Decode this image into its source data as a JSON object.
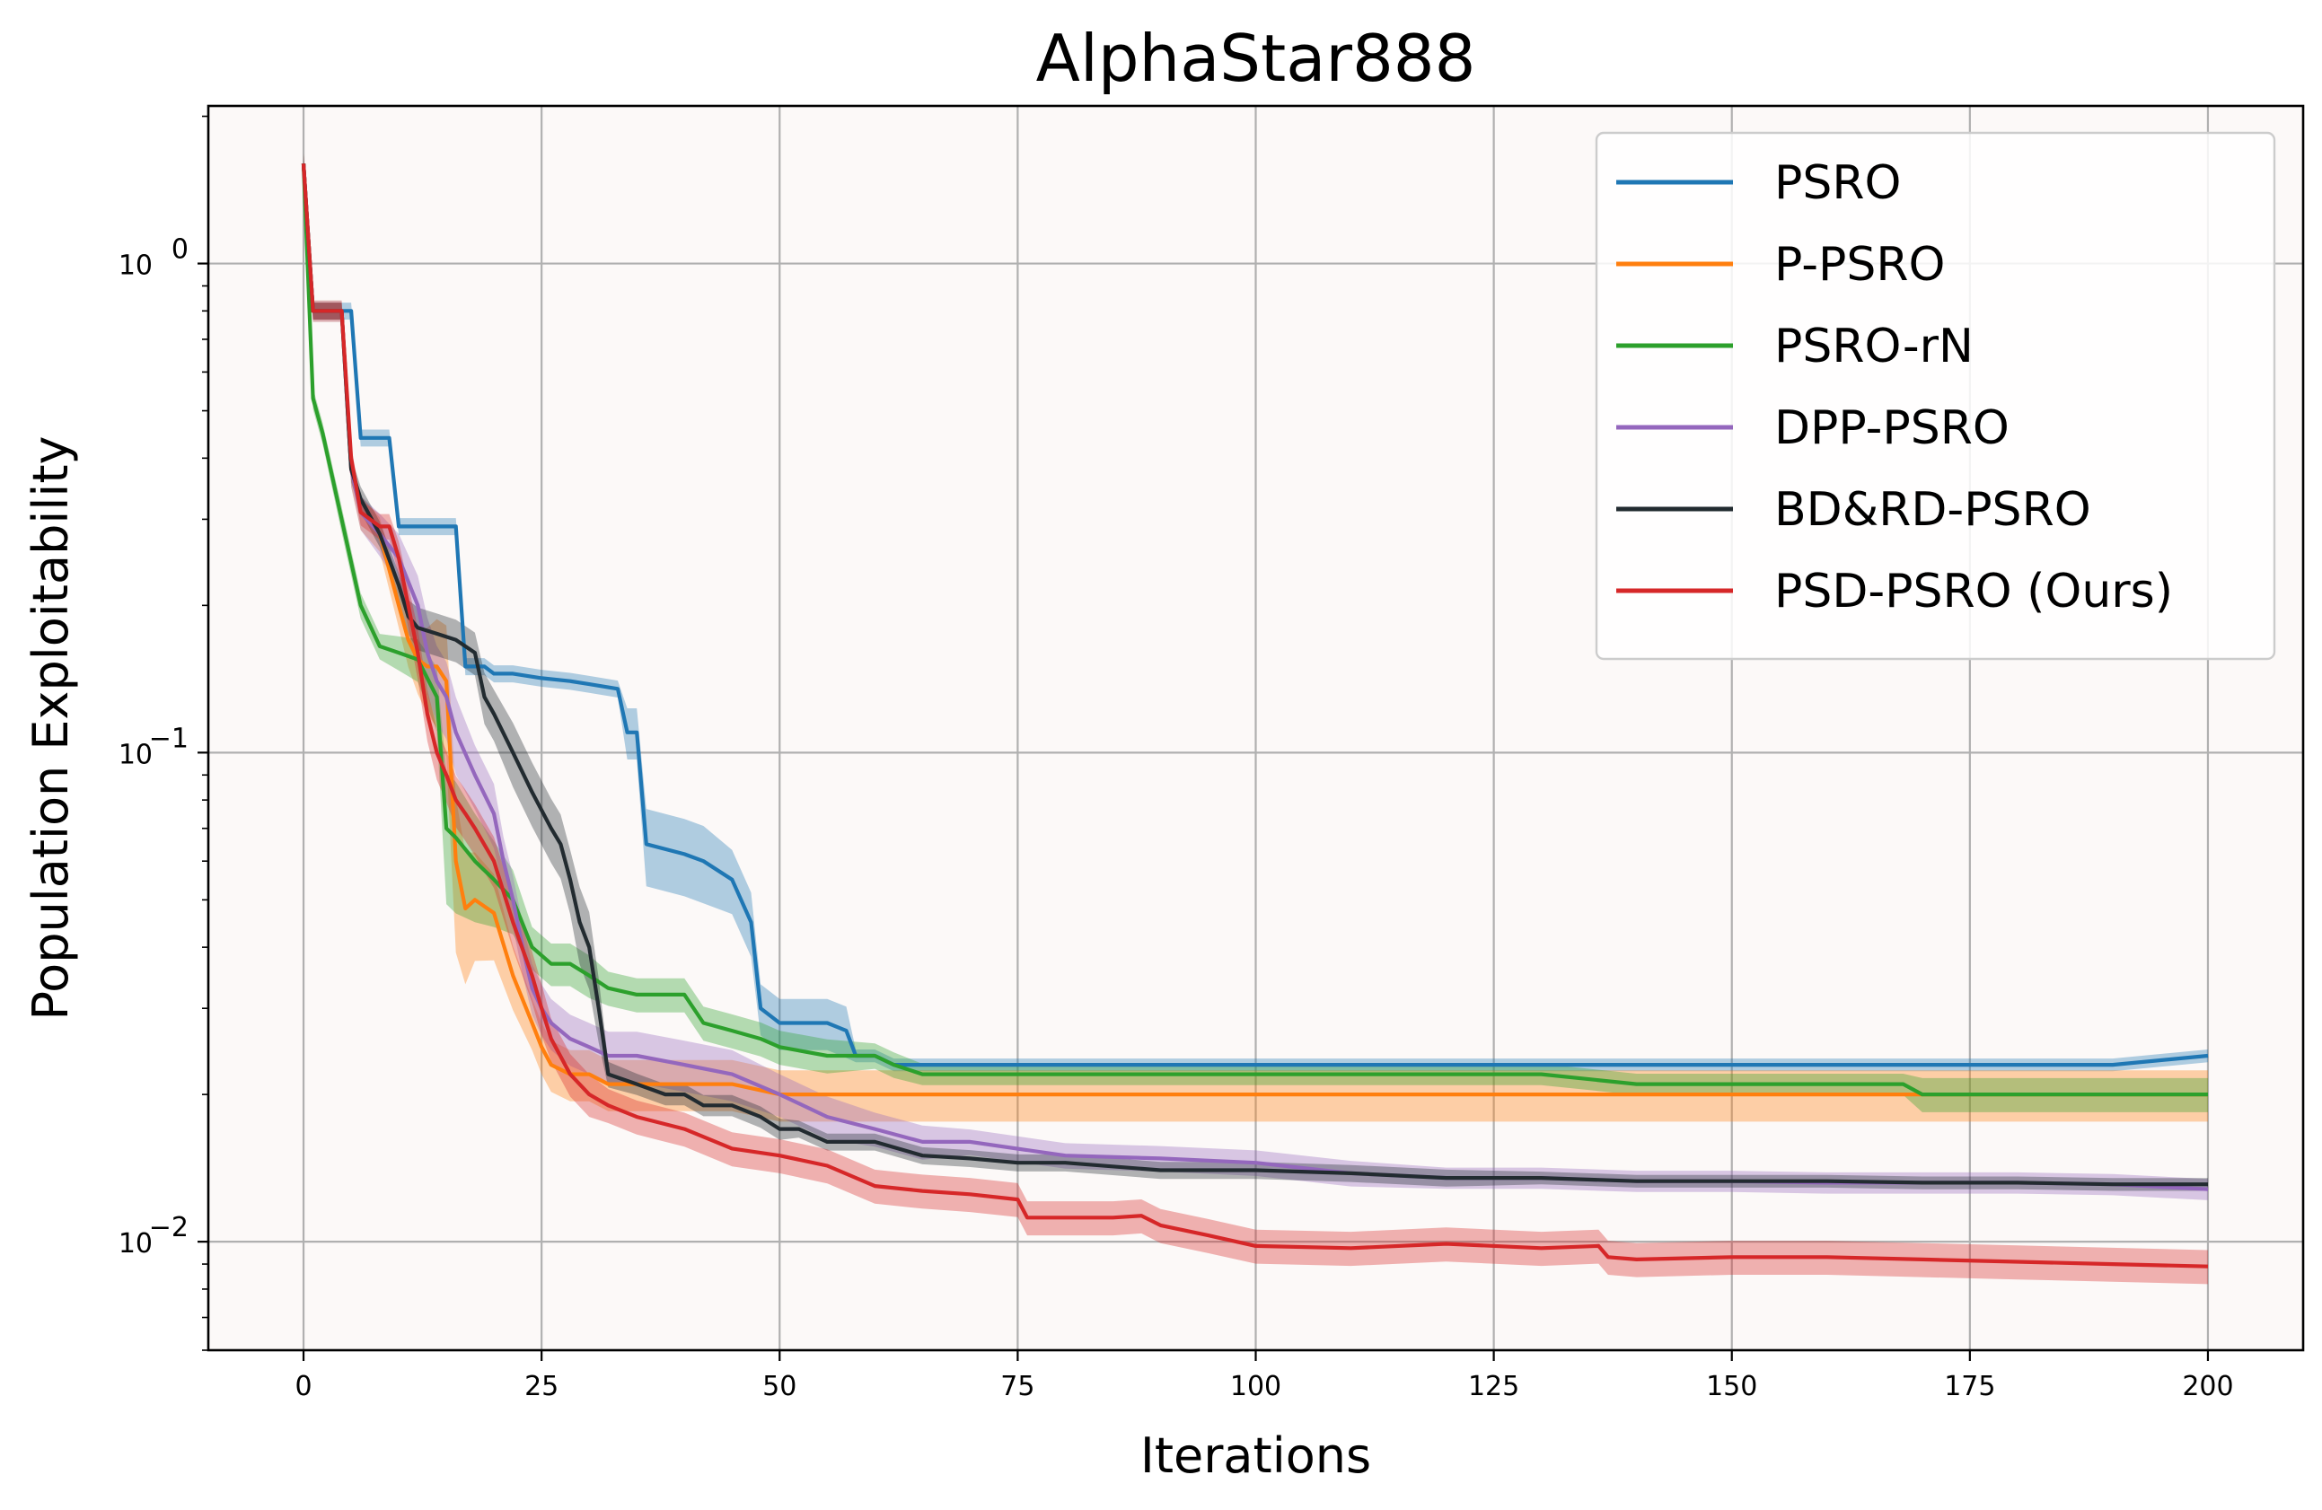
{
  "chart_data": {
    "type": "line",
    "title": "AlphaStar888",
    "xlabel": "Iterations",
    "ylabel": "Population Exploitability",
    "xlim": [
      -10,
      210
    ],
    "ylim": [
      0.006,
      2.1
    ],
    "yscale": "log",
    "grid": true,
    "legend_position": "upper right",
    "background_color": "#fcf9f8",
    "x_ticks": [
      0,
      25,
      50,
      75,
      100,
      125,
      150,
      175,
      200
    ],
    "x_tick_labels": [
      "0",
      "25",
      "50",
      "75",
      "100",
      "125",
      "150",
      "175",
      "200"
    ],
    "y_ticks": [
      {
        "value": 1,
        "base": "10",
        "exp": "0"
      },
      {
        "value": 0.1,
        "base": "10",
        "exp": "−1"
      },
      {
        "value": 0.01,
        "base": "10",
        "exp": "−2"
      }
    ],
    "series": [
      {
        "name": "PSRO",
        "color": "#1f77b4",
        "x": [
          0,
          1,
          3,
          5,
          6,
          9,
          10,
          13,
          14,
          16,
          17,
          19,
          20,
          22,
          25,
          28,
          30,
          33,
          34,
          35,
          36,
          40,
          42,
          45,
          47,
          48,
          50,
          52,
          55,
          57,
          58,
          60,
          62,
          65,
          70,
          80,
          90,
          100,
          110,
          120,
          130,
          140,
          150,
          160,
          170,
          180,
          190,
          200
        ],
        "y": [
          1.6,
          0.8,
          0.8,
          0.8,
          0.44,
          0.44,
          0.29,
          0.29,
          0.29,
          0.29,
          0.15,
          0.15,
          0.145,
          0.145,
          0.142,
          0.14,
          0.138,
          0.135,
          0.11,
          0.11,
          0.065,
          0.062,
          0.06,
          0.055,
          0.045,
          0.03,
          0.028,
          0.028,
          0.028,
          0.027,
          0.024,
          0.024,
          0.023,
          0.023,
          0.023,
          0.023,
          0.023,
          0.023,
          0.023,
          0.023,
          0.023,
          0.023,
          0.023,
          0.023,
          0.023,
          0.023,
          0.023,
          0.024
        ],
        "band": [
          0.04,
          0.04,
          0.04,
          0.04,
          0.04,
          0.04,
          0.04,
          0.04,
          0.04,
          0.04,
          0.04,
          0.04,
          0.04,
          0.04,
          0.04,
          0.04,
          0.04,
          0.04,
          0.12,
          0.12,
          0.18,
          0.18,
          0.18,
          0.15,
          0.15,
          0.12,
          0.12,
          0.12,
          0.12,
          0.12,
          0.03,
          0.03,
          0.03,
          0.03,
          0.03,
          0.03,
          0.03,
          0.03,
          0.03,
          0.03,
          0.03,
          0.03,
          0.03,
          0.03,
          0.03,
          0.03,
          0.03,
          0.03
        ]
      },
      {
        "name": "P-PSRO",
        "color": "#ff7f0e",
        "x": [
          0,
          1,
          3,
          4,
          5,
          6,
          8,
          10,
          11,
          12,
          13,
          14,
          15,
          16,
          17,
          18,
          20,
          22,
          24,
          25,
          26,
          28,
          30,
          32,
          35,
          40,
          45,
          50,
          60,
          70,
          80,
          90,
          100,
          110,
          120,
          130,
          140,
          150,
          160,
          170,
          180,
          190,
          200
        ],
        "y": [
          1.6,
          0.8,
          0.8,
          0.8,
          0.38,
          0.31,
          0.28,
          0.2,
          0.17,
          0.155,
          0.15,
          0.15,
          0.14,
          0.06,
          0.048,
          0.05,
          0.047,
          0.035,
          0.028,
          0.025,
          0.023,
          0.022,
          0.022,
          0.021,
          0.021,
          0.021,
          0.021,
          0.02,
          0.02,
          0.02,
          0.02,
          0.02,
          0.02,
          0.02,
          0.02,
          0.02,
          0.02,
          0.02,
          0.02,
          0.02,
          0.02,
          0.02,
          0.02
        ],
        "band": [
          0.05,
          0.05,
          0.05,
          0.05,
          0.08,
          0.08,
          0.08,
          0.1,
          0.12,
          0.15,
          0.2,
          0.25,
          0.3,
          0.35,
          0.3,
          0.25,
          0.2,
          0.15,
          0.12,
          0.12,
          0.12,
          0.12,
          0.12,
          0.12,
          0.12,
          0.12,
          0.12,
          0.12,
          0.12,
          0.12,
          0.12,
          0.12,
          0.12,
          0.12,
          0.12,
          0.12,
          0.12,
          0.12,
          0.12,
          0.12,
          0.12,
          0.12,
          0.12
        ]
      },
      {
        "name": "PSRO-rN",
        "color": "#2ca02c",
        "x": [
          0,
          1,
          2,
          4,
          6,
          8,
          10,
          12,
          14,
          15,
          16,
          18,
          20,
          22,
          24,
          26,
          28,
          30,
          32,
          35,
          40,
          42,
          45,
          48,
          50,
          55,
          60,
          62,
          65,
          70,
          80,
          90,
          100,
          110,
          120,
          130,
          140,
          150,
          160,
          168,
          170,
          180,
          190,
          200
        ],
        "y": [
          1.6,
          0.53,
          0.45,
          0.3,
          0.2,
          0.165,
          0.16,
          0.155,
          0.13,
          0.07,
          0.067,
          0.06,
          0.055,
          0.05,
          0.04,
          0.037,
          0.037,
          0.035,
          0.033,
          0.032,
          0.032,
          0.028,
          0.027,
          0.026,
          0.025,
          0.024,
          0.024,
          0.023,
          0.022,
          0.022,
          0.022,
          0.022,
          0.022,
          0.022,
          0.022,
          0.022,
          0.021,
          0.021,
          0.021,
          0.021,
          0.02,
          0.02,
          0.02,
          0.02
        ],
        "band": [
          0.05,
          0.05,
          0.05,
          0.06,
          0.06,
          0.06,
          0.08,
          0.1,
          0.15,
          0.3,
          0.3,
          0.25,
          0.2,
          0.15,
          0.1,
          0.1,
          0.1,
          0.1,
          0.08,
          0.08,
          0.08,
          0.08,
          0.08,
          0.08,
          0.08,
          0.08,
          0.06,
          0.06,
          0.05,
          0.05,
          0.05,
          0.05,
          0.05,
          0.05,
          0.05,
          0.05,
          0.05,
          0.05,
          0.05,
          0.05,
          0.08,
          0.08,
          0.08,
          0.08
        ]
      },
      {
        "name": "DPP-PSRO",
        "color": "#9467bd",
        "x": [
          0,
          1,
          3,
          4,
          5,
          6,
          8,
          10,
          12,
          13,
          14,
          15,
          16,
          18,
          20,
          21,
          22,
          23,
          24,
          25,
          26,
          28,
          30,
          32,
          35,
          40,
          45,
          50,
          55,
          60,
          65,
          70,
          80,
          90,
          100,
          110,
          120,
          130,
          140,
          150,
          160,
          170,
          180,
          190,
          200
        ],
        "y": [
          1.6,
          0.8,
          0.8,
          0.8,
          0.38,
          0.31,
          0.28,
          0.25,
          0.2,
          0.16,
          0.14,
          0.13,
          0.11,
          0.09,
          0.075,
          0.06,
          0.05,
          0.04,
          0.033,
          0.03,
          0.028,
          0.026,
          0.025,
          0.024,
          0.024,
          0.023,
          0.022,
          0.02,
          0.018,
          0.017,
          0.016,
          0.016,
          0.015,
          0.0148,
          0.0145,
          0.0138,
          0.0135,
          0.0135,
          0.0133,
          0.0133,
          0.0132,
          0.0132,
          0.0132,
          0.0131,
          0.0128
        ],
        "band": [
          0.05,
          0.05,
          0.05,
          0.05,
          0.08,
          0.08,
          0.1,
          0.12,
          0.15,
          0.18,
          0.18,
          0.18,
          0.18,
          0.15,
          0.15,
          0.12,
          0.12,
          0.12,
          0.12,
          0.12,
          0.12,
          0.12,
          0.12,
          0.12,
          0.12,
          0.12,
          0.12,
          0.1,
          0.1,
          0.08,
          0.08,
          0.06,
          0.06,
          0.06,
          0.06,
          0.06,
          0.05,
          0.05,
          0.05,
          0.05,
          0.05,
          0.05,
          0.05,
          0.05,
          0.05
        ]
      },
      {
        "name": "BD&RD-PSRO",
        "color": "#222b30",
        "x": [
          0,
          1,
          3,
          4,
          5,
          6,
          8,
          10,
          11,
          12,
          14,
          16,
          18,
          19,
          20,
          22,
          24,
          26,
          27,
          28,
          29,
          30,
          31,
          32,
          35,
          38,
          40,
          42,
          45,
          48,
          50,
          52,
          55,
          60,
          65,
          70,
          75,
          80,
          90,
          100,
          110,
          120,
          130,
          140,
          150,
          160,
          170,
          180,
          190,
          200
        ],
        "y": [
          1.6,
          0.8,
          0.8,
          0.8,
          0.38,
          0.33,
          0.28,
          0.22,
          0.19,
          0.18,
          0.175,
          0.17,
          0.16,
          0.13,
          0.12,
          0.1,
          0.083,
          0.07,
          0.065,
          0.055,
          0.045,
          0.04,
          0.03,
          0.022,
          0.021,
          0.02,
          0.02,
          0.019,
          0.019,
          0.018,
          0.017,
          0.017,
          0.016,
          0.016,
          0.015,
          0.0148,
          0.0145,
          0.0145,
          0.014,
          0.014,
          0.0138,
          0.0135,
          0.0135,
          0.0133,
          0.0133,
          0.0133,
          0.0132,
          0.0132,
          0.0131,
          0.0131
        ],
        "band": [
          0.04,
          0.04,
          0.04,
          0.04,
          0.06,
          0.06,
          0.06,
          0.06,
          0.08,
          0.1,
          0.1,
          0.1,
          0.1,
          0.12,
          0.12,
          0.15,
          0.15,
          0.15,
          0.15,
          0.15,
          0.18,
          0.18,
          0.15,
          0.06,
          0.05,
          0.05,
          0.05,
          0.05,
          0.05,
          0.05,
          0.05,
          0.04,
          0.04,
          0.04,
          0.04,
          0.04,
          0.04,
          0.04,
          0.04,
          0.04,
          0.04,
          0.04,
          0.03,
          0.03,
          0.03,
          0.03,
          0.03,
          0.03,
          0.03,
          0.03
        ]
      },
      {
        "name": "PSD-PSRO (Ours)",
        "color": "#d62728",
        "x": [
          0,
          1,
          3,
          4,
          5,
          6,
          8,
          9,
          10,
          11,
          12,
          13,
          14,
          15,
          16,
          17,
          18,
          20,
          22,
          24,
          25,
          26,
          28,
          30,
          32,
          35,
          40,
          45,
          50,
          55,
          60,
          65,
          70,
          75,
          76,
          80,
          85,
          88,
          90,
          95,
          100,
          110,
          120,
          130,
          136,
          137,
          140,
          150,
          160,
          170,
          180,
          190,
          200
        ],
        "y": [
          1.6,
          0.8,
          0.8,
          0.8,
          0.4,
          0.31,
          0.29,
          0.29,
          0.25,
          0.2,
          0.16,
          0.12,
          0.1,
          0.09,
          0.08,
          0.075,
          0.07,
          0.06,
          0.045,
          0.035,
          0.03,
          0.026,
          0.022,
          0.02,
          0.019,
          0.018,
          0.017,
          0.0155,
          0.015,
          0.0143,
          0.013,
          0.0127,
          0.0125,
          0.0122,
          0.0112,
          0.0112,
          0.0112,
          0.0113,
          0.0108,
          0.0103,
          0.0098,
          0.0097,
          0.0099,
          0.0097,
          0.0098,
          0.0093,
          0.0092,
          0.0093,
          0.0093,
          0.0092,
          0.0091,
          0.009,
          0.0089
        ],
        "band": [
          0.04,
          0.04,
          0.04,
          0.04,
          0.06,
          0.06,
          0.06,
          0.06,
          0.08,
          0.1,
          0.12,
          0.12,
          0.12,
          0.12,
          0.12,
          0.12,
          0.12,
          0.12,
          0.12,
          0.12,
          0.12,
          0.1,
          0.1,
          0.1,
          0.08,
          0.08,
          0.08,
          0.08,
          0.08,
          0.08,
          0.08,
          0.08,
          0.08,
          0.08,
          0.08,
          0.08,
          0.08,
          0.08,
          0.08,
          0.08,
          0.08,
          0.08,
          0.08,
          0.08,
          0.08,
          0.08,
          0.08,
          0.08,
          0.08,
          0.08,
          0.08,
          0.08,
          0.08
        ]
      }
    ]
  }
}
